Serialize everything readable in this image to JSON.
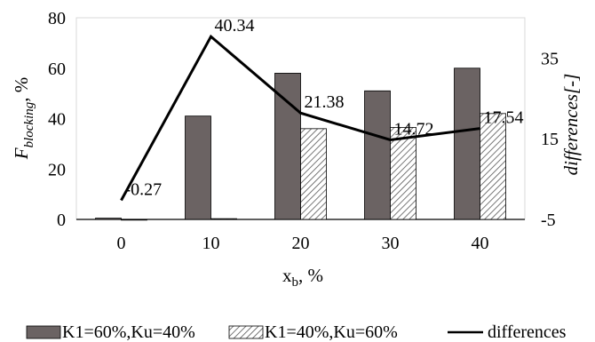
{
  "chart_data": {
    "type": "bar",
    "xlabel_main": "x",
    "xlabel_sub": "b",
    "xlabel_rest": ", %",
    "ylabel_main": "F",
    "ylabel_sub": "blocking",
    "ylabel_rest": ", %",
    "y2label": "differences[-]",
    "categories": [
      "0",
      "10",
      "20",
      "30",
      "40"
    ],
    "ylim": [
      0,
      80
    ],
    "yticks": [
      "0",
      "20",
      "40",
      "60",
      "80"
    ],
    "y2lim": [
      -5,
      45
    ],
    "y2ticks": [
      "-5",
      "15",
      "35"
    ],
    "grid": false,
    "legend_position": "bottom",
    "series": [
      {
        "name": "K1=60%,Ku=40%",
        "type": "bar",
        "axis": "left",
        "fill": "solid",
        "color": "#6b6363",
        "values": [
          0.5,
          41,
          58,
          51,
          60
        ]
      },
      {
        "name": "K1=40%,Ku=60%",
        "type": "bar",
        "axis": "left",
        "fill": "hatch",
        "color": "#555555",
        "values": [
          0,
          0.3,
          36,
          36.5,
          42
        ]
      },
      {
        "name": "differences",
        "type": "line",
        "axis": "right",
        "color": "#000000",
        "values": [
          -0.27,
          40.34,
          21.38,
          14.72,
          17.54
        ],
        "labels": [
          "-0.27",
          "40.34",
          "21.38",
          "14.72",
          "17.54"
        ]
      }
    ]
  }
}
